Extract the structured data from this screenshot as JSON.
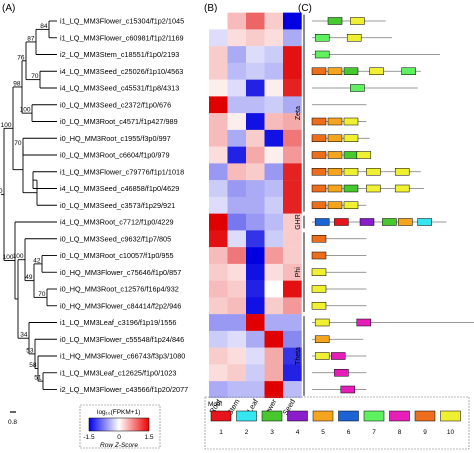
{
  "panels": {
    "a": "(A)",
    "b": "(B)",
    "c": "(C)"
  },
  "tree": {
    "labels": [
      "i1_LQ_MM3Flower_c15304/f1p2/1045",
      "i1_LQ_MM3Flower_c60981/f1p2/1169",
      "i2_LQ_MM3Stem_c18551/f1p0/2193",
      "i4_LQ_MM3Seed_c25026/f1p10/4563",
      "i4_LQ_MM3Seed_c45531/f1p8/4313",
      "i0_LQ_MM3Seed_c2372/f1p0/676",
      "i0_LQ_MM3Root_c4571/f1p427/989",
      "i0_HQ_MM3Root_c1955/f3p0/997",
      "i0_LQ_MM3Root_c6604/f1p0/979",
      "i1_LQ_MM3Flower_c79776/f1p1/1018",
      "i4_LQ_MM3Seed_c46858/f1p0/4629",
      "i0_LQ_MM3Seed_c3573/f1p29/921",
      "i4_LQ_MM3Root_c7712/f1p0/4229",
      "i0_LQ_MM3Seed_c9632/f1p7/805",
      "i0_LQ_MM3Root_c10057/f1p0/955",
      "i0_HQ_MM3Flower_c75646/f1p0/857",
      "i0_HQ_MM3Root_c12576/f16p4/932",
      "i0_HQ_MM3Flower_c84414/f2p2/946",
      "i1_LQ_MM3Leaf_c3196/f1p19/1556",
      "i0_LQ_MM3Flower_c55548/f1p24/846",
      "i1_HQ_MM3Flower_c66743/f3p3/1080",
      "i1_LQ_MM3Leaf_c12625/f1p0/1023",
      "i2_LQ_MM3Flower_c43566/f1p20/2077"
    ],
    "bootstrap": [
      "84",
      "87",
      "70",
      "76",
      "98",
      "100",
      "70",
      "100",
      "42",
      "49",
      "70",
      "100",
      "100",
      "100",
      "34",
      "53",
      "58",
      "51"
    ],
    "scale": "0.8"
  },
  "heatmap": {
    "columns": [
      "Root",
      "Stem",
      "Leaf",
      "Flower",
      "Seed"
    ],
    "groups": [
      "Zeta",
      "GHR",
      "Phi",
      "Theta"
    ],
    "values": [
      [
        0.0,
        0.4,
        0.9,
        0.3,
        -1.5
      ],
      [
        -0.2,
        0.2,
        0.3,
        0.2,
        -0.5
      ],
      [
        0.3,
        -0.5,
        -0.2,
        -0.3,
        1.4
      ],
      [
        0.3,
        -0.4,
        -0.3,
        -0.4,
        1.4
      ],
      [
        0.1,
        -0.2,
        -1.3,
        0.1,
        1.3
      ],
      [
        1.6,
        -0.4,
        -0.4,
        -0.3,
        -0.5
      ],
      [
        0.4,
        0.1,
        -1.4,
        0.4,
        0.5
      ],
      [
        0.4,
        -0.5,
        0.3,
        -1.4,
        0.8
      ],
      [
        0.2,
        -1.3,
        0.5,
        0.1,
        0.6
      ],
      [
        -0.6,
        0.4,
        0.3,
        -0.6,
        1.3
      ],
      [
        -0.3,
        -0.6,
        -0.5,
        -0.4,
        1.3
      ],
      [
        -0.2,
        -0.5,
        -0.5,
        -0.3,
        1.3
      ],
      [
        1.5,
        -0.8,
        -0.6,
        -0.4,
        0.3
      ],
      [
        1.4,
        -0.2,
        -1.2,
        -0.3,
        0.3
      ],
      [
        0.4,
        0.8,
        -1.5,
        0.6,
        0.3
      ],
      [
        0.3,
        0.2,
        -1.4,
        0.2,
        0.4
      ],
      [
        0.4,
        0.3,
        -1.3,
        0.0,
        1.4
      ],
      [
        0.3,
        0.4,
        -1.4,
        0.3,
        0.6
      ],
      [
        -0.6,
        -0.6,
        2.2,
        -0.5,
        -0.5
      ],
      [
        -0.3,
        -0.2,
        -0.5,
        1.7,
        -0.7
      ],
      [
        0.3,
        0.2,
        -0.2,
        0.5,
        -1.2
      ],
      [
        0.2,
        0.3,
        -0.3,
        0.5,
        -1.3
      ],
      [
        -0.5,
        -0.4,
        -0.4,
        1.8,
        -0.4
      ]
    ],
    "legend": {
      "title": "log₁₀(FPKM+1)",
      "min": "-1.5",
      "zero": "0",
      "max": "1.5",
      "subtitle": "Row Z-Score"
    }
  },
  "motif": {
    "legend_title": "Motif",
    "items": [
      {
        "num": "1",
        "color": "#e8141c"
      },
      {
        "num": "2",
        "color": "#33e6f0"
      },
      {
        "num": "3",
        "color": "#46c82e"
      },
      {
        "num": "4",
        "color": "#8a1ccc"
      },
      {
        "num": "5",
        "color": "#f5a51d"
      },
      {
        "num": "6",
        "color": "#1a64d6"
      },
      {
        "num": "7",
        "color": "#5ef05e"
      },
      {
        "num": "8",
        "color": "#e61eb8"
      },
      {
        "num": "9",
        "color": "#ec6e1a"
      },
      {
        "num": "10",
        "color": "#f0f032"
      }
    ],
    "rows": [
      {
        "len": 0.23,
        "boxes": [
          [
            3,
            0.05
          ],
          [
            10,
            0.12
          ]
        ]
      },
      {
        "len": 0.25,
        "boxes": [
          [
            7,
            0.01
          ],
          [
            10,
            0.11
          ]
        ]
      },
      {
        "len": 0.4,
        "boxes": [
          [
            7,
            0.01
          ]
        ]
      },
      {
        "len": 0.34,
        "boxes": [
          [
            9,
            0.0
          ],
          [
            5,
            0.05
          ],
          [
            3,
            0.1
          ],
          [
            10,
            0.18
          ],
          [
            7,
            0.28
          ]
        ]
      },
      {
        "len": 0.33,
        "boxes": [
          [
            7,
            0.12
          ]
        ]
      },
      {
        "len": 0.17,
        "boxes": []
      },
      {
        "len": 0.17,
        "boxes": [
          [
            9,
            0.0
          ],
          [
            5,
            0.05
          ],
          [
            10,
            0.1
          ]
        ]
      },
      {
        "len": 0.18,
        "boxes": [
          [
            9,
            0.0
          ],
          [
            5,
            0.05
          ],
          [
            10,
            0.1
          ]
        ]
      },
      {
        "len": 0.18,
        "boxes": [
          [
            9,
            0.0
          ],
          [
            5,
            0.05
          ],
          [
            3,
            0.1
          ],
          [
            10,
            0.14
          ]
        ]
      },
      {
        "len": 0.34,
        "boxes": [
          [
            9,
            0.0
          ],
          [
            5,
            0.05
          ],
          [
            10,
            0.1
          ],
          [
            10,
            0.17
          ],
          [
            10,
            0.26
          ]
        ]
      },
      {
        "len": 0.35,
        "boxes": [
          [
            9,
            0.0
          ],
          [
            5,
            0.05
          ],
          [
            3,
            0.1
          ],
          [
            10,
            0.17
          ],
          [
            10,
            0.26
          ]
        ]
      },
      {
        "len": 0.17,
        "boxes": [
          [
            9,
            0.0
          ],
          [
            5,
            0.05
          ],
          [
            10,
            0.1
          ]
        ]
      },
      {
        "len": 0.42,
        "boxes": [
          [
            6,
            0.01
          ],
          [
            1,
            0.07
          ],
          [
            4,
            0.15
          ],
          [
            3,
            0.22
          ],
          [
            5,
            0.27
          ],
          [
            2,
            0.33
          ]
        ]
      },
      {
        "len": 0.17,
        "boxes": [
          [
            9,
            0.0
          ]
        ]
      },
      {
        "len": 0.17,
        "boxes": [
          [
            9,
            0.0
          ]
        ]
      },
      {
        "len": 0.17,
        "boxes": [
          [
            10,
            0.0
          ]
        ]
      },
      {
        "len": 0.17,
        "boxes": [
          [
            10,
            0.0
          ]
        ]
      },
      {
        "len": 0.17,
        "boxes": [
          [
            10,
            0.0
          ]
        ]
      },
      {
        "len": 0.51,
        "boxes": [
          [
            10,
            0.01
          ],
          [
            8,
            0.14
          ]
        ]
      },
      {
        "len": 0.16,
        "boxes": [
          [
            5,
            0.01
          ]
        ]
      },
      {
        "len": 0.17,
        "boxes": [
          [
            10,
            0.01
          ],
          [
            8,
            0.06
          ]
        ]
      },
      {
        "len": 0.17,
        "boxes": [
          [
            8,
            0.07
          ]
        ]
      },
      {
        "len": 0.17,
        "boxes": [
          [
            8,
            0.09
          ]
        ]
      }
    ]
  }
}
